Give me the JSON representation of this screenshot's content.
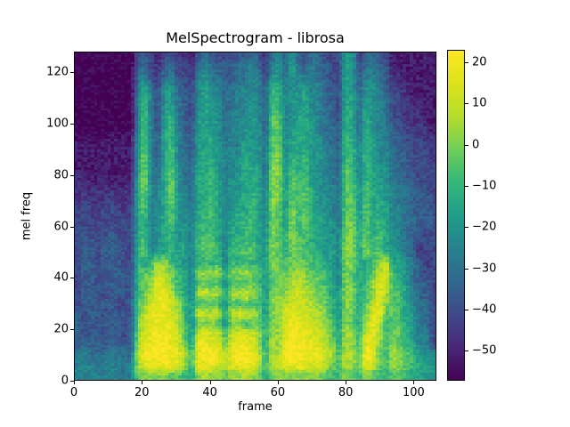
{
  "figure": {
    "title": "MelSpectrogram - librosa",
    "xlabel": "frame",
    "ylabel": "mel freq",
    "background": "#ffffff"
  },
  "axes": {
    "x_tick_labels": [
      "0",
      "20",
      "40",
      "60",
      "80",
      "100"
    ],
    "x_tick_values": [
      0,
      20,
      40,
      60,
      80,
      100
    ],
    "y_tick_labels": [
      "0",
      "20",
      "40",
      "60",
      "80",
      "100",
      "120"
    ],
    "y_tick_values": [
      0,
      20,
      40,
      60,
      80,
      100,
      120
    ],
    "x_max": 106.7,
    "y_max": 128
  },
  "colorbar": {
    "tick_labels": [
      "20",
      "10",
      "0",
      "−10",
      "−20",
      "−30",
      "−40",
      "−50"
    ],
    "tick_values": [
      20,
      10,
      0,
      -10,
      -20,
      -30,
      -40,
      -50
    ],
    "vmin": -57.3,
    "vmax": 23,
    "colormap": "viridis",
    "stops": [
      "#440154",
      "#482878",
      "#3e4989",
      "#31688e",
      "#26828e",
      "#1f9e89",
      "#35b779",
      "#6ece58",
      "#b5de2b",
      "#dde318",
      "#fde725"
    ]
  },
  "chart_data": {
    "type": "heatmap",
    "subtype": "mel-spectrogram",
    "title": "MelSpectrogram - librosa",
    "xlabel": "frame",
    "ylabel": "mel freq",
    "x_range": [
      0,
      107
    ],
    "y_range": [
      0,
      128
    ],
    "value_range_db": [
      -57.3,
      23
    ],
    "colormap": "viridis",
    "legend": "colorbar right, dB",
    "grid": {
      "cols": 54,
      "rows": 32,
      "col_span_frames": 2,
      "row_span_mels": 4,
      "row_order": "top_to_bottom_mel_128_to_0",
      "level_encoding": "hex digit 0-15; db = -57.3 + level * 5.353",
      "levels": [
        "000000000343134221454333445425647445533377345431111111",
        "000000000453245332565444556526748546543387356441111111",
        "000000000564256332675544556637757665543387466542211111",
        "000000000585377443686645666649866776644387477643221111",
        "000000000696378543687655667649967786644388577653321111",
        "000000000695378543687655667649967786654388587653322211",
        "0000000006a538954378775666774aa67887654398587653322211",
        "0000000006a638964478775667774aa67887655498587664332221",
        "1111111117a648965478875667775aa68887755498588664433322",
        "1111111117a648a65478876668775ab68887765499698665443332",
        "1111111117b648a65488876678775ab69897765499698675443332",
        "1111111117b658a75588976678885bb6a8977655a9698775543333",
        "2111211128b658b75588976778885bb7a9a77665a9698775544333",
        "2222222228b668b76588986778886bb7a9a87665aa7a8876554433",
        "2322232228a668b76588986788986bb7a9a87765aa7a8876554443",
        "3332333238a678a76589986788986ba7b9a87765aa7a8886654443",
        "33333333389678a77689986889986ba7b9a88775ab7a8986655444",
        "34333433389678977699986889986ba8b9a88776ab8a8986654333",
        "3443344338a67897869aa86899987ba8ba988776bb8b8a87654333",
        "3443444339a68898869aa9699aa87ba8ba998786bb8b9a87754233",
        "344344433989bb987689895989987ba9aba99876bb889bd8875423",
        "3444344439aadcb986bcbc8bbcba7ababcbaa986ba88ace9875433",
        "3443444349abedb9869a9a69a9a97abbccbba986ba89bdd9875443",
        "3444344439aceeca86cdcc8ccdcb7bbbcdcbba87bb89beca986443",
        "344344334abdeedb97a9a96a9a997bbcddccba97bb8aceba986553",
        "434434443aceeedc97ddcd8cddcb7bbdeddccb97ba8bdeaa987553",
        "434344434bceeeeca7aab97ab9aa8bbdeeddcba7ba8ced9aa87553",
        "434434434bdefeeda7dedd9ddedc8cbeeeeddca8cb9dec9ba97663",
        "454445444cdeffedb8eedeadeedc8cbefeeedcb8cb9eeb9ba98663",
        "565556555cefffeec9effeceffed9ccfffeeedc9ccafea9cba9877",
        "666566656cdeeeedc9eeedcdeeed9cceeeeddcb9cbaeda9bba9887",
        "666666656abbbbaa98bcbbabbcbb8bbbbbbbba99ba9ba99aa98877"
      ]
    }
  }
}
